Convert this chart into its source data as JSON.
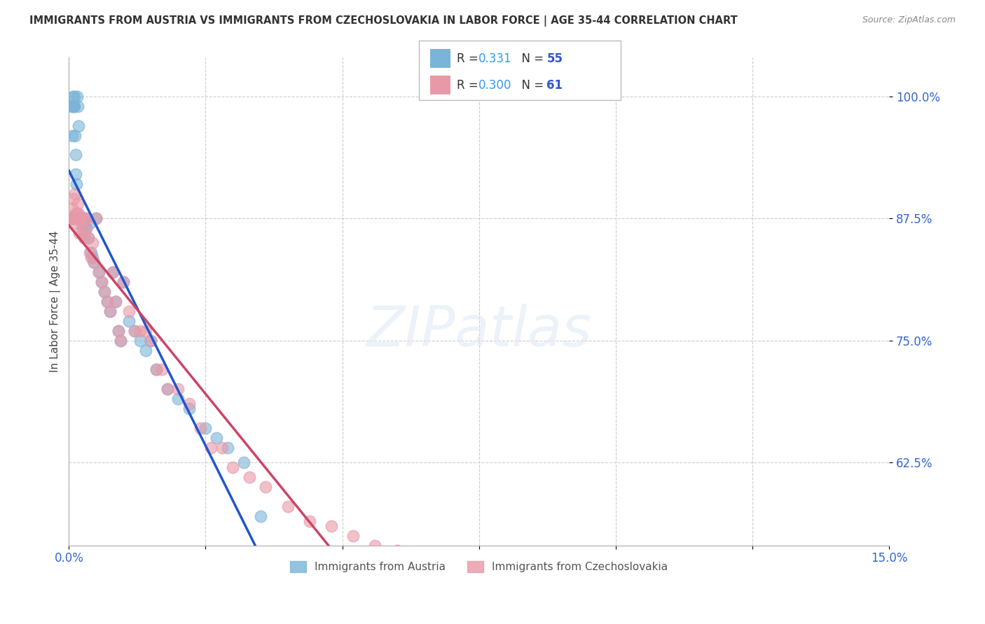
{
  "title": "IMMIGRANTS FROM AUSTRIA VS IMMIGRANTS FROM CZECHOSLOVAKIA IN LABOR FORCE | AGE 35-44 CORRELATION CHART",
  "source": "Source: ZipAtlas.com",
  "ylabel": "In Labor Force | Age 35-44",
  "xmin": 0.0,
  "xmax": 0.15,
  "ymin": 0.54,
  "ymax": 1.04,
  "austria_color": "#7ab4d8",
  "czechoslovakia_color": "#e899a8",
  "austria_R": 0.331,
  "austria_N": 55,
  "czechoslovakia_R": 0.3,
  "czechoslovakia_N": 61,
  "austria_line_color": "#2255cc",
  "czechoslovakia_line_color": "#cc4466",
  "legend_label_austria": "Immigrants from Austria",
  "legend_label_czechoslovakia": "Immigrants from Czechoslovakia",
  "grid_color": "#cccccc",
  "background_color": "#ffffff",
  "austria_x": [
    0.0003,
    0.0005,
    0.0006,
    0.0007,
    0.0008,
    0.0009,
    0.001,
    0.001,
    0.0011,
    0.0012,
    0.0013,
    0.0014,
    0.0015,
    0.0016,
    0.0017,
    0.0018,
    0.0019,
    0.002,
    0.0022,
    0.0023,
    0.0025,
    0.0027,
    0.0028,
    0.003,
    0.0032,
    0.0035,
    0.0038,
    0.004,
    0.0043,
    0.0046,
    0.005,
    0.0055,
    0.006,
    0.0065,
    0.007,
    0.0075,
    0.008,
    0.0085,
    0.009,
    0.0095,
    0.01,
    0.011,
    0.012,
    0.013,
    0.014,
    0.015,
    0.016,
    0.018,
    0.02,
    0.022,
    0.025,
    0.027,
    0.029,
    0.032,
    0.035
  ],
  "austria_y": [
    0.875,
    0.99,
    0.96,
    1.0,
    0.99,
    0.99,
    1.0,
    0.99,
    0.96,
    0.94,
    0.92,
    0.91,
    1.0,
    0.99,
    0.97,
    0.875,
    0.875,
    0.875,
    0.875,
    0.875,
    0.875,
    0.87,
    0.86,
    0.875,
    0.865,
    0.855,
    0.87,
    0.84,
    0.835,
    0.83,
    0.875,
    0.82,
    0.81,
    0.8,
    0.79,
    0.78,
    0.82,
    0.79,
    0.76,
    0.75,
    0.81,
    0.77,
    0.76,
    0.75,
    0.74,
    0.75,
    0.72,
    0.7,
    0.69,
    0.68,
    0.66,
    0.65,
    0.64,
    0.625,
    0.57
  ],
  "czechoslovakia_x": [
    0.0003,
    0.0005,
    0.0006,
    0.0007,
    0.0008,
    0.0009,
    0.001,
    0.0011,
    0.0012,
    0.0013,
    0.0014,
    0.0015,
    0.0016,
    0.0017,
    0.0018,
    0.0019,
    0.002,
    0.0022,
    0.0024,
    0.0026,
    0.0028,
    0.003,
    0.0032,
    0.0035,
    0.0038,
    0.004,
    0.0043,
    0.0046,
    0.005,
    0.0055,
    0.006,
    0.0065,
    0.007,
    0.0075,
    0.008,
    0.0085,
    0.009,
    0.0095,
    0.01,
    0.011,
    0.012,
    0.013,
    0.014,
    0.015,
    0.016,
    0.017,
    0.018,
    0.02,
    0.022,
    0.024,
    0.026,
    0.028,
    0.03,
    0.033,
    0.036,
    0.04,
    0.044,
    0.048,
    0.052,
    0.056,
    0.06
  ],
  "czechoslovakia_y": [
    0.875,
    0.875,
    0.885,
    0.875,
    0.895,
    0.875,
    0.875,
    0.9,
    0.88,
    0.87,
    0.875,
    0.88,
    0.89,
    0.875,
    0.88,
    0.86,
    0.875,
    0.87,
    0.86,
    0.875,
    0.855,
    0.875,
    0.865,
    0.855,
    0.84,
    0.835,
    0.85,
    0.83,
    0.875,
    0.82,
    0.81,
    0.8,
    0.79,
    0.78,
    0.82,
    0.79,
    0.76,
    0.75,
    0.81,
    0.78,
    0.76,
    0.76,
    0.76,
    0.75,
    0.72,
    0.72,
    0.7,
    0.7,
    0.685,
    0.66,
    0.64,
    0.64,
    0.62,
    0.61,
    0.6,
    0.58,
    0.565,
    0.56,
    0.55,
    0.54,
    0.535
  ]
}
